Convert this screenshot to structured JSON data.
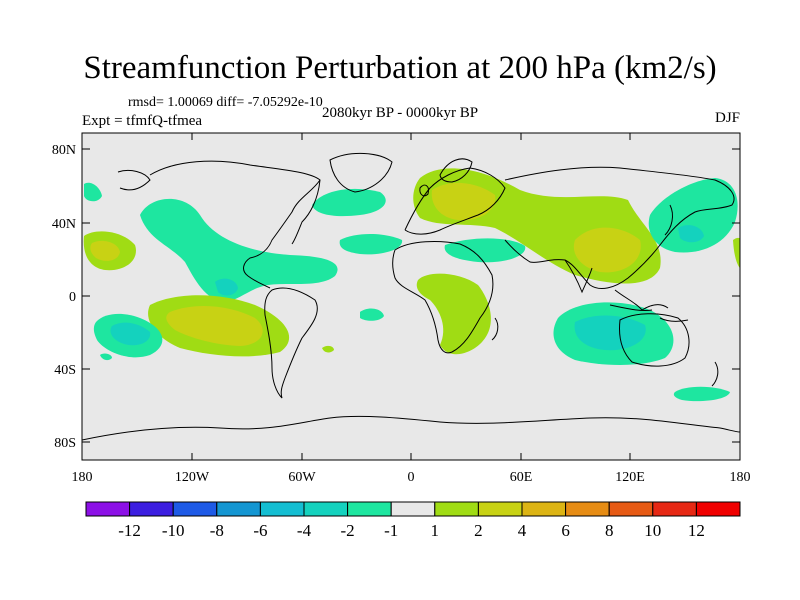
{
  "title": "Streamfunction Perturbation at 200 hPa (km2/s)",
  "stats": "rmsd= 1.00069 diff= -7.05292e-10",
  "left_label": "Expt = tfmfQ-tfmea",
  "center_label": "2080kyr BP - 0000kyr BP",
  "right_label": "DJF",
  "lat_labels": [
    "80N",
    "40N",
    "0",
    "40S",
    "80S"
  ],
  "lon_labels": [
    "180",
    "120W",
    "60W",
    "0",
    "60E",
    "120E",
    "180"
  ],
  "colorbar": {
    "labels": [
      "-12",
      "-10",
      "-8",
      "-6",
      "-4",
      "-2",
      "-1",
      "1",
      "2",
      "4",
      "6",
      "8",
      "10",
      "12"
    ],
    "colors": [
      "#8c10e6",
      "#3c1ee0",
      "#1e5ae6",
      "#1496d2",
      "#14bed2",
      "#14d2be",
      "#1ee6a0",
      "#e8e8e8",
      "#a0dc14",
      "#c8d214",
      "#dcb414",
      "#e68c14",
      "#e65a14",
      "#e62814",
      "#f00000"
    ]
  },
  "colors": {
    "ocean_bg": "#e8e8e8",
    "coast": "#000000"
  }
}
